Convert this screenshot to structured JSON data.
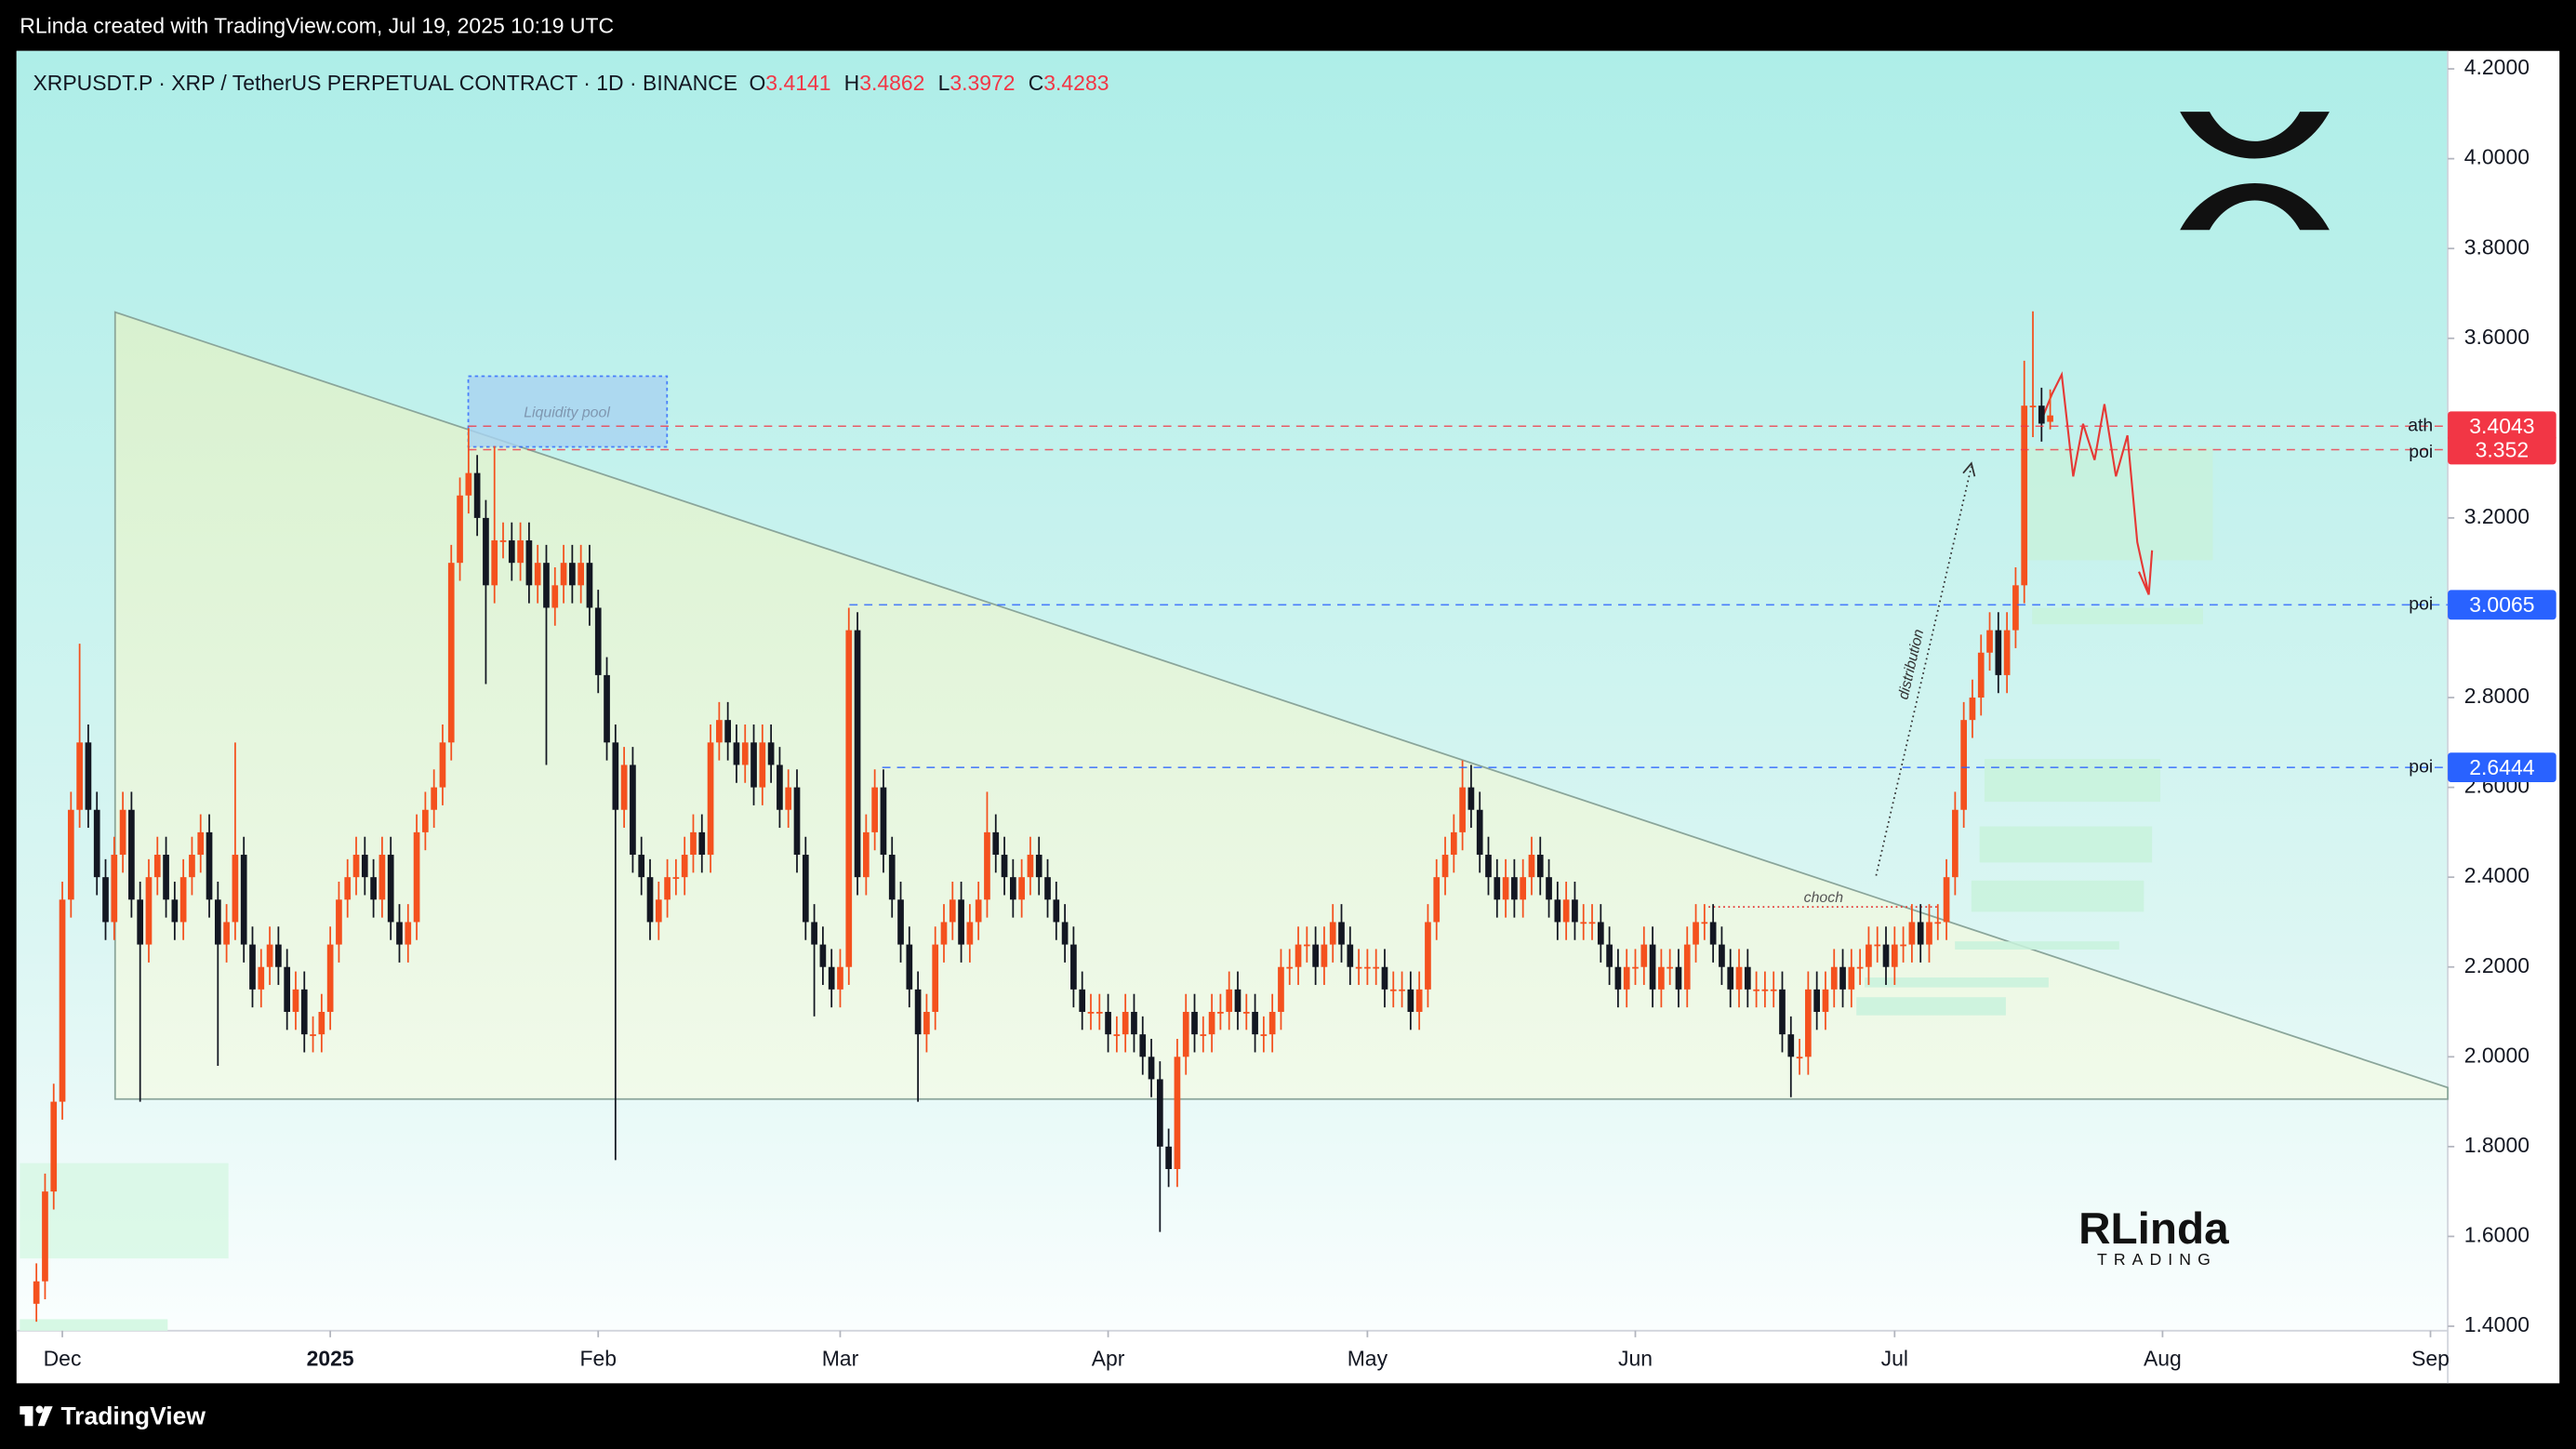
{
  "top_bar": {
    "text": "RLinda created with TradingView.com, Jul 19, 2025 10:19 UTC"
  },
  "chart_data": {
    "type": "candlestick",
    "title": "XRPUSDT.P · XRP / TetherUS PERPETUAL CONTRACT · 1D · BINANCE",
    "ohlc_labels": [
      "O",
      "H",
      "L",
      "C"
    ],
    "ohlc_values": [
      3.4141,
      3.4862,
      3.3972,
      3.4283
    ],
    "up_color": "#f4511e",
    "down_color": "#131722",
    "x": [
      -3,
      -2,
      -1,
      0,
      1,
      2,
      3,
      4,
      5,
      6,
      7,
      8,
      9,
      10,
      11,
      12,
      13,
      14,
      15,
      16,
      17,
      18,
      19,
      20,
      21,
      22,
      23,
      24,
      25,
      26,
      27,
      28,
      29,
      30,
      31,
      32,
      33,
      34,
      35,
      36,
      37,
      38,
      39,
      40,
      41,
      42,
      43,
      44,
      45,
      46,
      47,
      48,
      49,
      50,
      51,
      52,
      53,
      54,
      55,
      56,
      57,
      58,
      59,
      60,
      61,
      62,
      63,
      64,
      65,
      66,
      67,
      68,
      69,
      70,
      71,
      72,
      73,
      74,
      75,
      76,
      77,
      78,
      79,
      80,
      81,
      82,
      83,
      84,
      85,
      86,
      87,
      88,
      89,
      90,
      91,
      92,
      93,
      94,
      95,
      96,
      97,
      98,
      99,
      100,
      101,
      102,
      103,
      104,
      105,
      106,
      107,
      108,
      109,
      110,
      111,
      112,
      113,
      114,
      115,
      116,
      117,
      118,
      119,
      120,
      121,
      122,
      123,
      124,
      125,
      126,
      127,
      128,
      129,
      130,
      131,
      132,
      133,
      134,
      135,
      136,
      137,
      138,
      139,
      140,
      141,
      142,
      143,
      144,
      145,
      146,
      147,
      148,
      149,
      150,
      151,
      152,
      153,
      154,
      155,
      156,
      157,
      158,
      159,
      160,
      161,
      162,
      163,
      164,
      165,
      166,
      167,
      168,
      169,
      170,
      171,
      172,
      173,
      174,
      175,
      176,
      177,
      178,
      179,
      180,
      181,
      182,
      183,
      184,
      185,
      186,
      187,
      188,
      189,
      190,
      191,
      192,
      193,
      194,
      195,
      196,
      197,
      198,
      199,
      200,
      201,
      202,
      203,
      204,
      205,
      206,
      207,
      208,
      209,
      210,
      211,
      212,
      213,
      214,
      215,
      216,
      217,
      218,
      219,
      220,
      221,
      222,
      223,
      224,
      225,
      226,
      227,
      228,
      229,
      230
    ],
    "open": [
      1.45,
      1.5,
      1.7,
      1.9,
      2.35,
      2.55,
      2.7,
      2.55,
      2.4,
      2.3,
      2.45,
      2.55,
      2.35,
      2.25,
      2.4,
      2.45,
      2.35,
      2.3,
      2.4,
      2.45,
      2.5,
      2.35,
      2.25,
      2.3,
      2.45,
      2.25,
      2.15,
      2.2,
      2.25,
      2.2,
      2.1,
      2.15,
      2.05,
      2.05,
      2.1,
      2.25,
      2.35,
      2.4,
      2.45,
      2.4,
      2.35,
      2.45,
      2.3,
      2.25,
      2.3,
      2.5,
      2.55,
      2.6,
      2.7,
      3.1,
      3.25,
      3.3,
      3.2,
      3.05,
      3.15,
      3.15,
      3.1,
      3.15,
      3.05,
      3.1,
      3.0,
      3.05,
      3.1,
      3.05,
      3.1,
      3.0,
      2.85,
      2.7,
      2.55,
      2.65,
      2.45,
      2.4,
      2.3,
      2.35,
      2.4,
      2.4,
      2.45,
      2.5,
      2.45,
      2.7,
      2.75,
      2.7,
      2.65,
      2.7,
      2.6,
      2.7,
      2.65,
      2.55,
      2.6,
      2.45,
      2.3,
      2.25,
      2.2,
      2.15,
      2.2,
      2.95,
      2.4,
      2.5,
      2.6,
      2.45,
      2.35,
      2.25,
      2.15,
      2.05,
      2.1,
      2.25,
      2.3,
      2.35,
      2.25,
      2.3,
      2.35,
      2.5,
      2.45,
      2.4,
      2.35,
      2.4,
      2.45,
      2.4,
      2.35,
      2.3,
      2.25,
      2.15,
      2.1,
      2.1,
      2.1,
      2.05,
      2.05,
      2.1,
      2.05,
      2.0,
      1.95,
      1.8,
      1.75,
      2.0,
      2.1,
      2.05,
      2.05,
      2.1,
      2.1,
      2.15,
      2.1,
      2.1,
      2.05,
      2.05,
      2.1,
      2.2,
      2.2,
      2.25,
      2.25,
      2.2,
      2.25,
      2.3,
      2.25,
      2.2,
      2.2,
      2.2,
      2.2,
      2.15,
      2.15,
      2.15,
      2.1,
      2.15,
      2.3,
      2.4,
      2.45,
      2.5,
      2.6,
      2.55,
      2.45,
      2.4,
      2.35,
      2.4,
      2.35,
      2.4,
      2.45,
      2.4,
      2.35,
      2.3,
      2.35,
      2.3,
      2.3,
      2.3,
      2.25,
      2.2,
      2.15,
      2.2,
      2.2,
      2.25,
      2.15,
      2.2,
      2.2,
      2.15,
      2.25,
      2.3,
      2.3,
      2.25,
      2.2,
      2.15,
      2.2,
      2.15,
      2.15,
      2.15,
      2.15,
      2.05,
      2.0,
      2.0,
      2.15,
      2.1,
      2.15,
      2.2,
      2.15,
      2.2,
      2.2,
      2.25,
      2.25,
      2.2,
      2.25,
      2.25,
      2.3,
      2.25,
      2.3,
      2.3,
      2.4,
      2.55,
      2.75,
      2.8,
      2.9,
      2.95,
      2.85,
      2.95,
      3.05,
      3.45,
      3.45,
      3.4141
    ],
    "high": [
      1.54,
      1.74,
      1.94,
      2.39,
      2.59,
      2.92,
      2.74,
      2.59,
      2.44,
      2.49,
      2.59,
      2.59,
      2.39,
      2.44,
      2.49,
      2.49,
      2.39,
      2.44,
      2.49,
      2.54,
      2.54,
      2.39,
      2.34,
      2.7,
      2.49,
      2.29,
      2.24,
      2.29,
      2.29,
      2.24,
      2.19,
      2.19,
      2.09,
      2.14,
      2.29,
      2.39,
      2.44,
      2.49,
      2.49,
      2.44,
      2.49,
      2.49,
      2.34,
      2.34,
      2.54,
      2.59,
      2.64,
      2.74,
      3.14,
      3.29,
      3.4,
      3.34,
      3.24,
      3.36,
      3.19,
      3.19,
      3.19,
      3.19,
      3.14,
      3.14,
      3.09,
      3.14,
      3.14,
      3.14,
      3.14,
      3.04,
      2.89,
      2.74,
      2.69,
      2.69,
      2.49,
      2.44,
      2.39,
      2.44,
      2.44,
      2.49,
      2.54,
      2.54,
      2.74,
      2.79,
      2.79,
      2.74,
      2.74,
      2.74,
      2.74,
      2.74,
      2.69,
      2.64,
      2.64,
      2.49,
      2.34,
      2.29,
      2.24,
      2.24,
      3.0,
      2.99,
      2.54,
      2.64,
      2.64,
      2.49,
      2.39,
      2.29,
      2.19,
      2.14,
      2.29,
      2.34,
      2.39,
      2.39,
      2.34,
      2.39,
      2.59,
      2.54,
      2.49,
      2.44,
      2.44,
      2.49,
      2.49,
      2.44,
      2.39,
      2.34,
      2.29,
      2.19,
      2.14,
      2.14,
      2.14,
      2.09,
      2.14,
      2.14,
      2.09,
      2.04,
      1.99,
      1.84,
      2.04,
      2.14,
      2.14,
      2.09,
      2.14,
      2.14,
      2.19,
      2.19,
      2.14,
      2.14,
      2.09,
      2.14,
      2.24,
      2.24,
      2.29,
      2.29,
      2.29,
      2.29,
      2.34,
      2.34,
      2.29,
      2.24,
      2.24,
      2.24,
      2.24,
      2.19,
      2.19,
      2.19,
      2.19,
      2.34,
      2.44,
      2.49,
      2.54,
      2.66,
      2.65,
      2.59,
      2.49,
      2.44,
      2.44,
      2.44,
      2.44,
      2.49,
      2.49,
      2.44,
      2.39,
      2.39,
      2.39,
      2.34,
      2.34,
      2.34,
      2.29,
      2.24,
      2.24,
      2.24,
      2.29,
      2.29,
      2.24,
      2.24,
      2.24,
      2.29,
      2.34,
      2.34,
      2.34,
      2.29,
      2.24,
      2.24,
      2.24,
      2.19,
      2.19,
      2.19,
      2.19,
      2.09,
      2.04,
      2.19,
      2.19,
      2.19,
      2.24,
      2.24,
      2.24,
      2.24,
      2.29,
      2.29,
      2.29,
      2.29,
      2.29,
      2.34,
      2.34,
      2.34,
      2.34,
      2.44,
      2.59,
      2.79,
      2.84,
      2.94,
      2.99,
      2.99,
      2.99,
      3.09,
      3.55,
      3.66,
      3.49,
      3.4862
    ],
    "low": [
      1.41,
      1.46,
      1.66,
      1.86,
      2.31,
      2.51,
      2.51,
      2.36,
      2.26,
      2.26,
      2.41,
      2.31,
      1.9,
      2.21,
      2.36,
      2.31,
      2.26,
      2.26,
      2.36,
      2.41,
      2.31,
      1.98,
      2.21,
      2.26,
      2.21,
      2.11,
      2.11,
      2.16,
      2.16,
      2.06,
      2.06,
      2.01,
      2.01,
      2.01,
      2.06,
      2.21,
      2.31,
      2.36,
      2.36,
      2.31,
      2.31,
      2.26,
      2.21,
      2.21,
      2.26,
      2.46,
      2.51,
      2.56,
      2.66,
      3.06,
      3.21,
      3.16,
      2.83,
      3.01,
      3.11,
      3.06,
      3.06,
      3.01,
      3.01,
      2.65,
      2.96,
      3.01,
      3.01,
      3.01,
      2.96,
      2.81,
      2.66,
      1.77,
      2.51,
      2.41,
      2.36,
      2.26,
      2.26,
      2.31,
      2.36,
      2.36,
      2.41,
      2.41,
      2.41,
      2.66,
      2.66,
      2.61,
      2.61,
      2.56,
      2.56,
      2.61,
      2.51,
      2.51,
      2.41,
      2.26,
      2.09,
      2.16,
      2.11,
      2.11,
      2.16,
      2.36,
      2.36,
      2.46,
      2.41,
      2.31,
      2.21,
      2.11,
      1.9,
      2.01,
      2.06,
      2.21,
      2.26,
      2.21,
      2.21,
      2.26,
      2.31,
      2.41,
      2.36,
      2.31,
      2.31,
      2.36,
      2.36,
      2.31,
      2.26,
      2.21,
      2.11,
      2.06,
      2.06,
      2.06,
      2.01,
      2.01,
      2.01,
      2.01,
      1.96,
      1.91,
      1.61,
      1.71,
      1.71,
      1.96,
      2.01,
      2.01,
      2.01,
      2.06,
      2.06,
      2.06,
      2.06,
      2.01,
      2.01,
      2.01,
      2.06,
      2.16,
      2.16,
      2.21,
      2.16,
      2.16,
      2.21,
      2.21,
      2.16,
      2.16,
      2.16,
      2.16,
      2.11,
      2.11,
      2.11,
      2.06,
      2.06,
      2.11,
      2.26,
      2.36,
      2.41,
      2.46,
      2.51,
      2.41,
      2.36,
      2.31,
      2.31,
      2.31,
      2.31,
      2.36,
      2.36,
      2.31,
      2.26,
      2.26,
      2.26,
      2.26,
      2.26,
      2.21,
      2.16,
      2.11,
      2.11,
      2.16,
      2.16,
      2.11,
      2.11,
      2.16,
      2.11,
      2.11,
      2.21,
      2.26,
      2.21,
      2.16,
      2.11,
      2.11,
      2.11,
      2.11,
      2.11,
      2.11,
      2.01,
      1.91,
      1.96,
      1.96,
      2.06,
      2.06,
      2.11,
      2.11,
      2.11,
      2.16,
      2.16,
      2.21,
      2.16,
      2.16,
      2.21,
      2.21,
      2.21,
      2.21,
      2.26,
      2.26,
      2.36,
      2.51,
      2.71,
      2.76,
      2.86,
      2.81,
      2.81,
      2.91,
      3.01,
      3.38,
      3.37,
      3.3972
    ],
    "close": [
      1.5,
      1.7,
      1.9,
      2.35,
      2.55,
      2.7,
      2.55,
      2.4,
      2.3,
      2.45,
      2.55,
      2.35,
      2.25,
      2.4,
      2.45,
      2.35,
      2.3,
      2.4,
      2.45,
      2.5,
      2.35,
      2.25,
      2.3,
      2.45,
      2.25,
      2.15,
      2.2,
      2.25,
      2.2,
      2.1,
      2.15,
      2.05,
      2.05,
      2.1,
      2.25,
      2.35,
      2.4,
      2.45,
      2.4,
      2.35,
      2.45,
      2.3,
      2.25,
      2.3,
      2.5,
      2.55,
      2.6,
      2.7,
      3.1,
      3.25,
      3.3,
      3.2,
      3.05,
      3.15,
      3.15,
      3.1,
      3.15,
      3.05,
      3.1,
      3.0,
      3.05,
      3.1,
      3.05,
      3.1,
      3.0,
      2.85,
      2.7,
      2.55,
      2.65,
      2.45,
      2.4,
      2.3,
      2.35,
      2.4,
      2.4,
      2.45,
      2.5,
      2.45,
      2.7,
      2.75,
      2.7,
      2.65,
      2.7,
      2.6,
      2.7,
      2.65,
      2.55,
      2.6,
      2.45,
      2.3,
      2.25,
      2.2,
      2.15,
      2.2,
      2.95,
      2.4,
      2.5,
      2.6,
      2.45,
      2.35,
      2.25,
      2.15,
      2.05,
      2.1,
      2.25,
      2.3,
      2.35,
      2.25,
      2.3,
      2.35,
      2.5,
      2.45,
      2.4,
      2.35,
      2.4,
      2.45,
      2.4,
      2.35,
      2.3,
      2.25,
      2.15,
      2.1,
      2.1,
      2.1,
      2.05,
      2.05,
      2.1,
      2.05,
      2.0,
      1.95,
      1.8,
      1.75,
      2.0,
      2.1,
      2.05,
      2.05,
      2.1,
      2.1,
      2.15,
      2.1,
      2.1,
      2.05,
      2.05,
      2.1,
      2.2,
      2.2,
      2.25,
      2.25,
      2.2,
      2.25,
      2.3,
      2.25,
      2.2,
      2.2,
      2.2,
      2.2,
      2.15,
      2.15,
      2.15,
      2.1,
      2.15,
      2.3,
      2.4,
      2.45,
      2.5,
      2.6,
      2.55,
      2.45,
      2.4,
      2.35,
      2.4,
      2.35,
      2.4,
      2.45,
      2.4,
      2.35,
      2.3,
      2.35,
      2.3,
      2.3,
      2.3,
      2.25,
      2.2,
      2.15,
      2.2,
      2.2,
      2.25,
      2.15,
      2.2,
      2.2,
      2.15,
      2.25,
      2.3,
      2.3,
      2.25,
      2.2,
      2.15,
      2.2,
      2.15,
      2.15,
      2.15,
      2.15,
      2.05,
      2.0,
      2.0,
      2.15,
      2.1,
      2.15,
      2.2,
      2.15,
      2.2,
      2.2,
      2.25,
      2.25,
      2.2,
      2.25,
      2.25,
      2.3,
      2.25,
      2.3,
      2.3,
      2.4,
      2.55,
      2.75,
      2.8,
      2.9,
      2.95,
      2.85,
      2.95,
      3.05,
      3.45,
      3.45,
      3.41,
      3.4283
    ],
    "xlim": [
      -5.3,
      276
    ],
    "xticks": [
      {
        "value": 0,
        "label": "Dec"
      },
      {
        "value": 31,
        "label": "2025"
      },
      {
        "value": 62,
        "label": "Feb"
      },
      {
        "value": 90,
        "label": "Mar"
      },
      {
        "value": 121,
        "label": "Apr"
      },
      {
        "value": 151,
        "label": "May"
      },
      {
        "value": 182,
        "label": "Jun"
      },
      {
        "value": 212,
        "label": "Jul"
      },
      {
        "value": 243,
        "label": "Aug"
      },
      {
        "value": 274,
        "label": "Sep"
      }
    ],
    "ylim": [
      1.39,
      4.24
    ],
    "yticks": [
      {
        "value": 1.4,
        "label": "1.4000"
      },
      {
        "value": 1.6,
        "label": "1.6000"
      },
      {
        "value": 1.8,
        "label": "1.8000"
      },
      {
        "value": 2.0,
        "label": "2.0000"
      },
      {
        "value": 2.2,
        "label": "2.2000"
      },
      {
        "value": 2.4,
        "label": "2.4000"
      },
      {
        "value": 2.6,
        "label": "2.6000"
      },
      {
        "value": 2.8,
        "label": "2.8000"
      },
      {
        "value": 3.0,
        "label": "3.0000"
      },
      {
        "value": 3.2,
        "label": "3.2000"
      },
      {
        "value": 3.4,
        "label": "3.4000"
      },
      {
        "value": 3.6,
        "label": "3.6000"
      },
      {
        "value": 3.8,
        "label": "3.8000"
      },
      {
        "value": 4.0,
        "label": "4.0000"
      },
      {
        "value": 4.2,
        "label": "4.2000"
      }
    ],
    "levels": [
      {
        "name": "ath",
        "value": 3.4043,
        "color": "#f23645"
      },
      {
        "name": "poi",
        "value": 3.352,
        "color": "#f23645"
      },
      {
        "name": "poi",
        "value": 3.0065,
        "color": "#2962ff"
      },
      {
        "name": "poi",
        "value": 2.6444,
        "color": "#2962ff"
      }
    ],
    "annotations": {
      "liquidity_pool": "Liquidity pool",
      "choch": "choch",
      "distribution": "distribution"
    }
  },
  "logo": {
    "name": "RLinda",
    "sub": "TRADING"
  },
  "footer": {
    "brand": "TradingView"
  }
}
